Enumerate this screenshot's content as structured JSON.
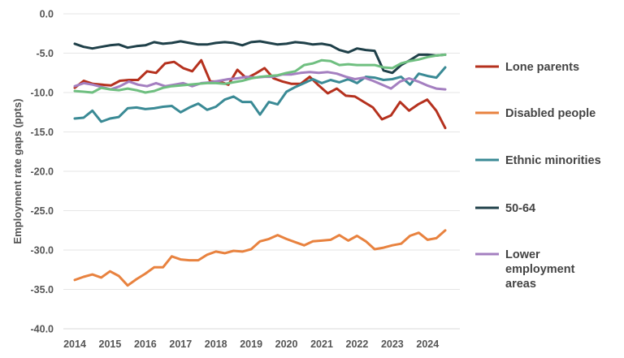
{
  "chart_data": {
    "type": "line",
    "title": "",
    "xlabel": "",
    "ylabel": "Employment rate gaps (ppts)",
    "ylim": [
      -40,
      0
    ],
    "y_ticks": [
      "0.0",
      "-5.0",
      "-10.0",
      "-15.0",
      "-20.0",
      "-25.0",
      "-30.0",
      "-35.0",
      "-40.0"
    ],
    "x_ticks": [
      "2014",
      "2015",
      "2016",
      "2017",
      "2018",
      "2019",
      "2020",
      "2021",
      "2022",
      "2023",
      "2024"
    ],
    "xlim": [
      2014,
      2024.5
    ],
    "grid": "horizontal",
    "legend_position": "right",
    "series": [
      {
        "name": "Lone parents",
        "color": "#b5311e",
        "legend_lines": [
          "Lone parents"
        ],
        "values": [
          -9.4,
          -8.5,
          -8.9,
          -9.0,
          -9.1,
          -8.5,
          -8.4,
          -8.4,
          -7.3,
          -7.5,
          -6.3,
          -6.1,
          -6.9,
          -7.3,
          -5.9,
          -8.6,
          -8.6,
          -9.0,
          -7.1,
          -8.2,
          -7.6,
          -6.9,
          -8.2,
          -8.6,
          -8.9,
          -8.9,
          -8.0,
          -9.1,
          -10.1,
          -9.5,
          -10.4,
          -10.5,
          -11.2,
          -11.9,
          -13.4,
          -12.9,
          -11.2,
          -12.3,
          -11.5,
          -10.9,
          -12.3,
          -14.5
        ]
      },
      {
        "name": "Disabled people",
        "color": "#e8823f",
        "legend_lines": [
          "Disabled people"
        ],
        "values": [
          -33.8,
          -33.4,
          -33.1,
          -33.5,
          -32.7,
          -33.3,
          -34.5,
          -33.7,
          -33.0,
          -32.2,
          -32.2,
          -30.8,
          -31.2,
          -31.3,
          -31.3,
          -30.6,
          -30.2,
          -30.4,
          -30.1,
          -30.2,
          -29.9,
          -28.9,
          -28.6,
          -28.1,
          -28.6,
          -29.0,
          -29.4,
          -28.9,
          -28.8,
          -28.7,
          -28.1,
          -28.8,
          -28.2,
          -28.9,
          -29.9,
          -29.7,
          -29.4,
          -29.2,
          -28.2,
          -27.8,
          -28.7,
          -28.5,
          -27.5
        ]
      },
      {
        "name": "Ethnic minorities",
        "color": "#3a8a95",
        "legend_lines": [
          "Ethnic minorities"
        ],
        "values": [
          -13.3,
          -13.2,
          -12.3,
          -13.7,
          -13.3,
          -13.1,
          -12.0,
          -11.9,
          -12.1,
          -12.0,
          -11.8,
          -11.7,
          -12.5,
          -11.9,
          -11.4,
          -12.2,
          -11.8,
          -10.9,
          -10.5,
          -11.2,
          -11.2,
          -12.8,
          -11.2,
          -11.5,
          -9.9,
          -9.3,
          -8.8,
          -8.3,
          -8.8,
          -8.4,
          -8.7,
          -8.3,
          -8.8,
          -8.0,
          -8.1,
          -8.4,
          -8.3,
          -8.0,
          -9.0,
          -7.6,
          -7.9,
          -8.1,
          -6.8
        ]
      },
      {
        "name": "50-64",
        "color": "#1f4049",
        "legend_lines": [
          "50-64"
        ],
        "values": [
          -3.8,
          -4.2,
          -4.4,
          -4.2,
          -4.0,
          -3.9,
          -4.3,
          -4.1,
          -4.0,
          -3.6,
          -3.8,
          -3.7,
          -3.5,
          -3.7,
          -3.9,
          -3.9,
          -3.7,
          -3.6,
          -3.7,
          -4.0,
          -3.6,
          -3.5,
          -3.7,
          -3.9,
          -3.8,
          -3.6,
          -3.7,
          -3.9,
          -3.8,
          -4.0,
          -4.6,
          -4.9,
          -4.4,
          -4.6,
          -4.7,
          -7.2,
          -7.5,
          -6.5,
          -5.9,
          -5.2,
          -5.2,
          -5.3,
          -5.2
        ]
      },
      {
        "name": "Lower employment areas",
        "color": "#a47fc0",
        "legend_lines": [
          "Lower",
          "employment",
          "areas"
        ],
        "values": [
          -9.2,
          -8.8,
          -9.0,
          -9.3,
          -9.6,
          -9.2,
          -8.6,
          -9.0,
          -9.2,
          -8.8,
          -9.2,
          -9.0,
          -8.8,
          -9.2,
          -8.8,
          -8.7,
          -8.5,
          -8.3,
          -8.2,
          -8.0,
          -8.1,
          -8.0,
          -8.0,
          -7.7,
          -7.7,
          -7.5,
          -7.4,
          -7.5,
          -7.4,
          -7.6,
          -8.0,
          -8.3,
          -8.1,
          -8.5,
          -9.0,
          -9.5,
          -8.6,
          -8.2,
          -8.6,
          -9.1,
          -9.5,
          -9.6
        ]
      },
      {
        "name": "",
        "color": "#6fbf80",
        "legend_lines": [],
        "values": [
          -9.8,
          -9.9,
          -10.0,
          -9.4,
          -9.6,
          -9.7,
          -9.5,
          -9.7,
          -10.0,
          -9.8,
          -9.4,
          -9.2,
          -9.1,
          -9.0,
          -8.9,
          -8.8,
          -8.8,
          -8.9,
          -8.7,
          -8.5,
          -8.2,
          -8.0,
          -7.9,
          -7.8,
          -7.5,
          -7.3,
          -6.5,
          -6.3,
          -5.9,
          -6.0,
          -6.5,
          -6.4,
          -6.5,
          -6.5,
          -6.5,
          -6.8,
          -6.9,
          -6.3,
          -6.0,
          -5.8,
          -5.5,
          -5.3,
          -5.2
        ]
      }
    ]
  }
}
